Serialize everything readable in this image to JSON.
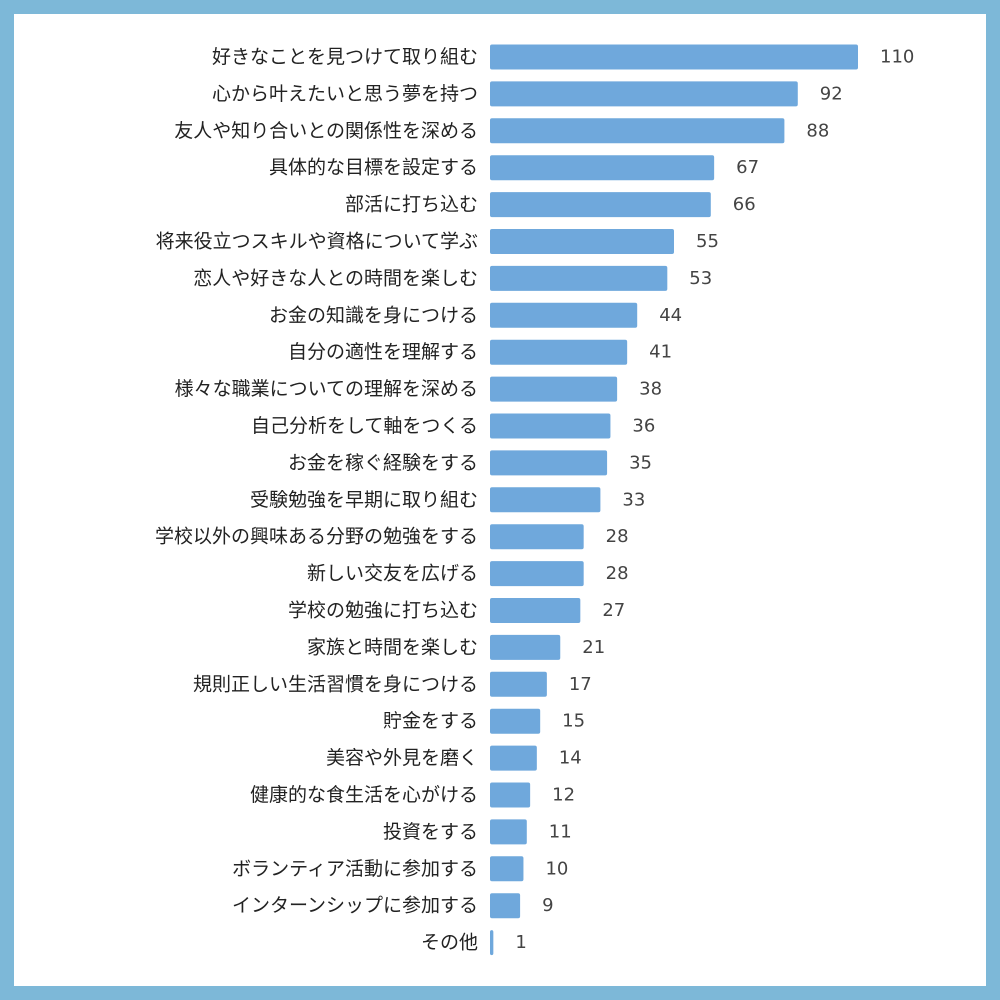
{
  "chart_data": {
    "type": "bar",
    "orientation": "horizontal",
    "title": "",
    "xlabel": "",
    "ylabel": "",
    "bar_color": "#6fa8dc",
    "background": "#ffffff",
    "frame_color": "#7db8d8",
    "grid": false,
    "legend": "none",
    "xlim": [
      0,
      110
    ],
    "categories": [
      "好きなことを見つけて取り組む",
      "心から叶えたいと思う夢を持つ",
      "友人や知り合いとの関係性を深める",
      "具体的な目標を設定する",
      "部活に打ち込む",
      "将来役立つスキルや資格について学ぶ",
      "恋人や好きな人との時間を楽しむ",
      "お金の知識を身につける",
      "自分の適性を理解する",
      "様々な職業についての理解を深める",
      "自己分析をして軸をつくる",
      "お金を稼ぐ経験をする",
      "受験勉強を早期に取り組む",
      "学校以外の興味ある分野の勉強をする",
      "新しい交友を広げる",
      "学校の勉強に打ち込む",
      "家族と時間を楽しむ",
      "規則正しい生活習慣を身につける",
      "貯金をする",
      "美容や外見を磨く",
      "健康的な食生活を心がける",
      "投資をする",
      "ボランティア活動に参加する",
      "インターンシップに参加する",
      "その他"
    ],
    "values": [
      110,
      92,
      88,
      67,
      66,
      55,
      53,
      44,
      41,
      38,
      36,
      35,
      33,
      28,
      28,
      27,
      21,
      17,
      15,
      14,
      12,
      11,
      10,
      9,
      1
    ]
  }
}
